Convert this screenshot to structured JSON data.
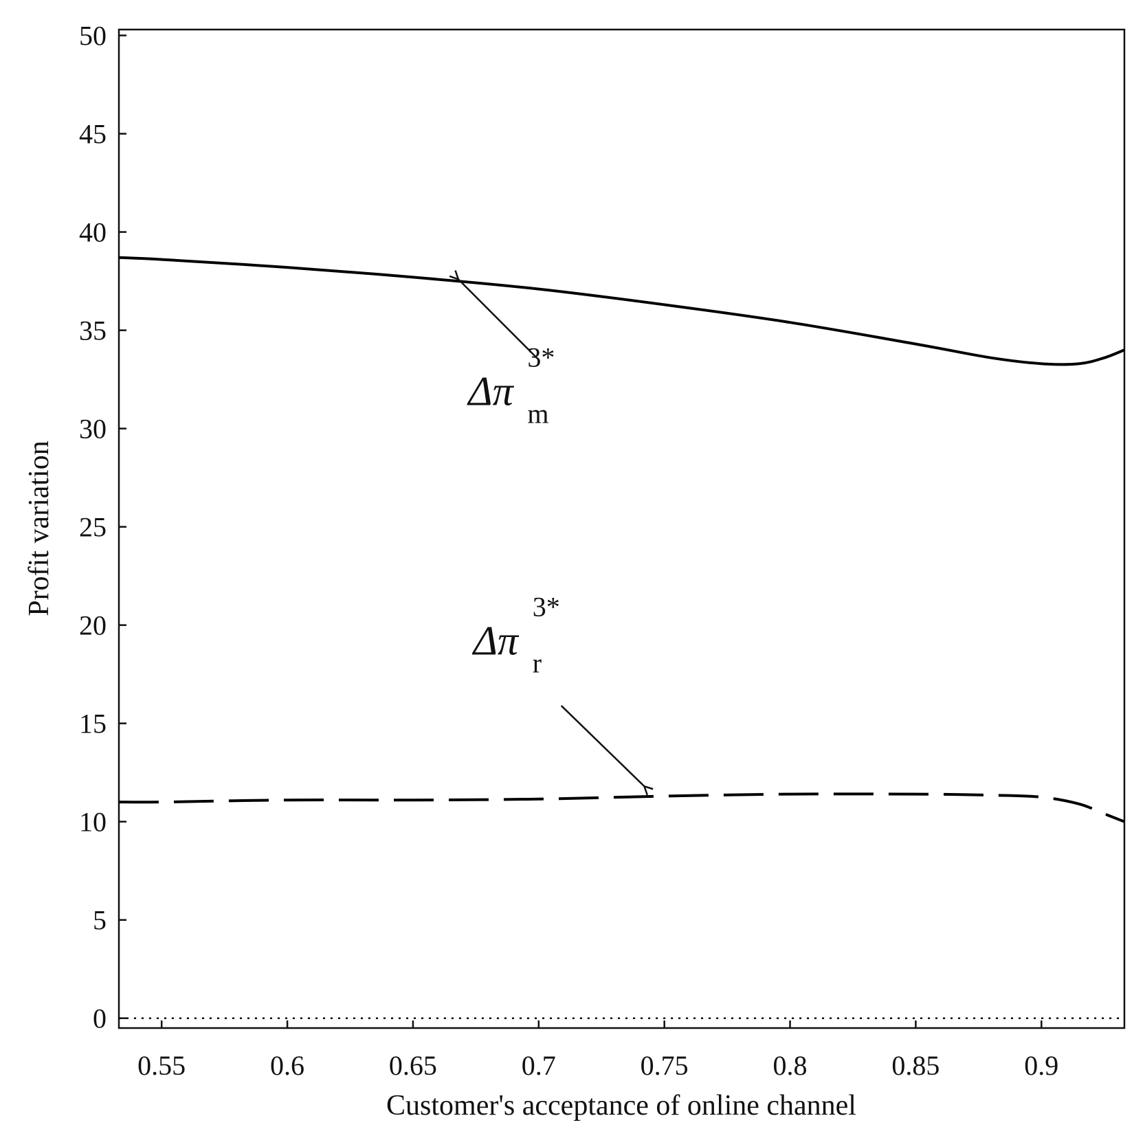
{
  "chart_data": {
    "type": "line",
    "title": "",
    "xlabel": "Customer's acceptance of online channel",
    "ylabel": "Profit variation",
    "xlim": [
      0.533,
      0.933
    ],
    "ylim": [
      -0.5,
      50.3
    ],
    "xticks": [
      0.55,
      0.6,
      0.65,
      0.7,
      0.75,
      0.8,
      0.85,
      0.9
    ],
    "xtick_labels": [
      "0.55",
      "0.6",
      "0.65",
      "0.7",
      "0.75",
      "0.8",
      "0.85",
      "0.9"
    ],
    "yticks": [
      0,
      5,
      10,
      15,
      20,
      25,
      30,
      35,
      40,
      45,
      50
    ],
    "ytick_labels": [
      "0",
      "5",
      "10",
      "15",
      "20",
      "25",
      "30",
      "35",
      "40",
      "45",
      "50"
    ],
    "grid": false,
    "legend": "none",
    "series": [
      {
        "style": "solid",
        "color": "#000000",
        "x": [
          0.533,
          0.55,
          0.6,
          0.65,
          0.7,
          0.75,
          0.8,
          0.85,
          0.88,
          0.9,
          0.915,
          0.925,
          0.933
        ],
        "y": [
          38.7,
          38.6,
          38.2,
          37.7,
          37.1,
          36.3,
          35.4,
          34.3,
          33.6,
          33.3,
          33.3,
          33.6,
          34.0
        ]
      },
      {
        "style": "dashed",
        "color": "#000000",
        "x": [
          0.533,
          0.55,
          0.6,
          0.65,
          0.7,
          0.75,
          0.8,
          0.85,
          0.88,
          0.9,
          0.915,
          0.925,
          0.933
        ],
        "y": [
          11.0,
          11.0,
          11.1,
          11.1,
          11.15,
          11.3,
          11.4,
          11.4,
          11.35,
          11.25,
          10.9,
          10.4,
          10.0
        ]
      },
      {
        "style": "dotted",
        "color": "#000000",
        "x": [
          0.533,
          0.933
        ],
        "y": [
          0,
          0
        ]
      }
    ],
    "annotations": [
      {
        "main": "Δπ",
        "sup": "3*",
        "sub": "m",
        "text_at": [
          0.672,
          31.2
        ],
        "arrow_from": [
          0.7,
          33.5
        ],
        "arrow_to": [
          0.668,
          37.6
        ]
      },
      {
        "main": "Δπ",
        "sup": "3*",
        "sub": "r",
        "text_at": [
          0.674,
          18.5
        ],
        "arrow_from": [
          0.709,
          15.9
        ],
        "arrow_to": [
          0.742,
          11.8
        ]
      }
    ]
  }
}
